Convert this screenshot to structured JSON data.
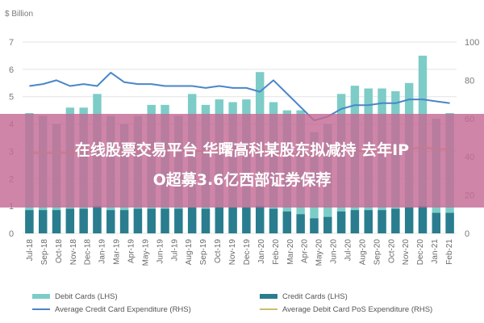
{
  "chart_data": {
    "type": "bar",
    "unit_label": "$ Billion",
    "categories": [
      "Jul-18",
      "Aug-18",
      "Sep-18",
      "Oct-18",
      "Nov-18",
      "Dec-18",
      "Jan-19",
      "Feb-19",
      "Mar-19",
      "Apr-19",
      "May-19",
      "Jun-19",
      "Jul-19",
      "Aug-19",
      "Sep-19",
      "Oct-19",
      "Nov-19",
      "Dec-19",
      "Jan-20",
      "Feb-20",
      "Mar-20",
      "Apr-20",
      "May-20",
      "Jun-20",
      "Jul-20",
      "Aug-20",
      "Sep-20",
      "Oct-20",
      "Nov-20",
      "Dec-20",
      "Jan-21",
      "Feb-21"
    ],
    "x_tick_labels": [
      "Jul-18",
      "Sep-18",
      "Oct-18",
      "Nov-18",
      "Dec-18",
      "Jan-19",
      "Mar-19",
      "Apr-19",
      "May-19",
      "Jun-19",
      "Jul-19",
      "Aug-19",
      "Sep-19",
      "Oct-19",
      "Nov-19",
      "Dec-19",
      "Jan-20",
      "Feb-20",
      "Mar-20",
      "Apr-20",
      "May-20",
      "Jun-20",
      "Jul-20",
      "Aug-20",
      "Sep-20",
      "Oct-20",
      "Nov-20",
      "Dec-20",
      "Jan-21",
      "Feb-21"
    ],
    "y_left": {
      "ylim": [
        0,
        7
      ],
      "ticks": [
        0,
        1,
        2,
        3,
        4,
        5,
        6,
        7
      ]
    },
    "y_right": {
      "ylim": [
        0,
        100
      ],
      "ticks": [
        0,
        20,
        40,
        60,
        80,
        100
      ]
    },
    "series": [
      {
        "name": "Debit Cards (LHS)",
        "type": "bar",
        "axis": "left",
        "color": "#7dccc8",
        "values": [
          4.4,
          4.3,
          4.0,
          4.6,
          4.6,
          5.1,
          4.3,
          4.0,
          4.3,
          4.7,
          4.7,
          4.3,
          5.1,
          4.7,
          4.9,
          4.8,
          4.9,
          5.9,
          4.8,
          4.5,
          4.5,
          3.7,
          4.0,
          5.1,
          5.4,
          5.3,
          5.3,
          5.2,
          5.5,
          6.5,
          4.2,
          4.4
        ]
      },
      {
        "name": "Credit Cards (LHS)",
        "type": "bar",
        "axis": "left",
        "color": "#2a7d8e",
        "values": [
          0.85,
          0.85,
          0.85,
          0.9,
          0.9,
          1.0,
          0.85,
          0.85,
          0.9,
          0.9,
          0.9,
          0.9,
          0.95,
          0.9,
          0.95,
          0.95,
          0.95,
          1.0,
          0.9,
          0.8,
          0.7,
          0.55,
          0.6,
          0.8,
          0.85,
          0.85,
          0.85,
          0.9,
          0.95,
          1.0,
          0.75,
          0.75
        ]
      },
      {
        "name": "Average Credit Card Expenditure (RHS)",
        "type": "line",
        "axis": "right",
        "color": "#4a86c8",
        "values": [
          77,
          78,
          80,
          77,
          78,
          77,
          84,
          79,
          78,
          78,
          77,
          77,
          77,
          76,
          77,
          76,
          76,
          74,
          80,
          73,
          66,
          59,
          61,
          65,
          67,
          67,
          68,
          68,
          70,
          70,
          69,
          68
        ]
      },
      {
        "name": "Average Debit Card PoS Expenditure (RHS)",
        "type": "line",
        "axis": "right",
        "color": "#c8c06a",
        "values": [
          42,
          42,
          42,
          42,
          43,
          44,
          43,
          43,
          43,
          43,
          43,
          43,
          43,
          43,
          43,
          43,
          43,
          44,
          42,
          42,
          41,
          40,
          42,
          43,
          43,
          43,
          43,
          43,
          44,
          45,
          44,
          44
        ]
      }
    ]
  },
  "banner": {
    "line1": "在线股票交易平台 华曙高科某股东拟减持 去年IP",
    "line2": "O超募3.6亿西部证券保荐"
  },
  "colors": {
    "banner_bg": "#c46a95",
    "grid": "#e3e3e3",
    "axis_text": "#7a7a7a"
  }
}
